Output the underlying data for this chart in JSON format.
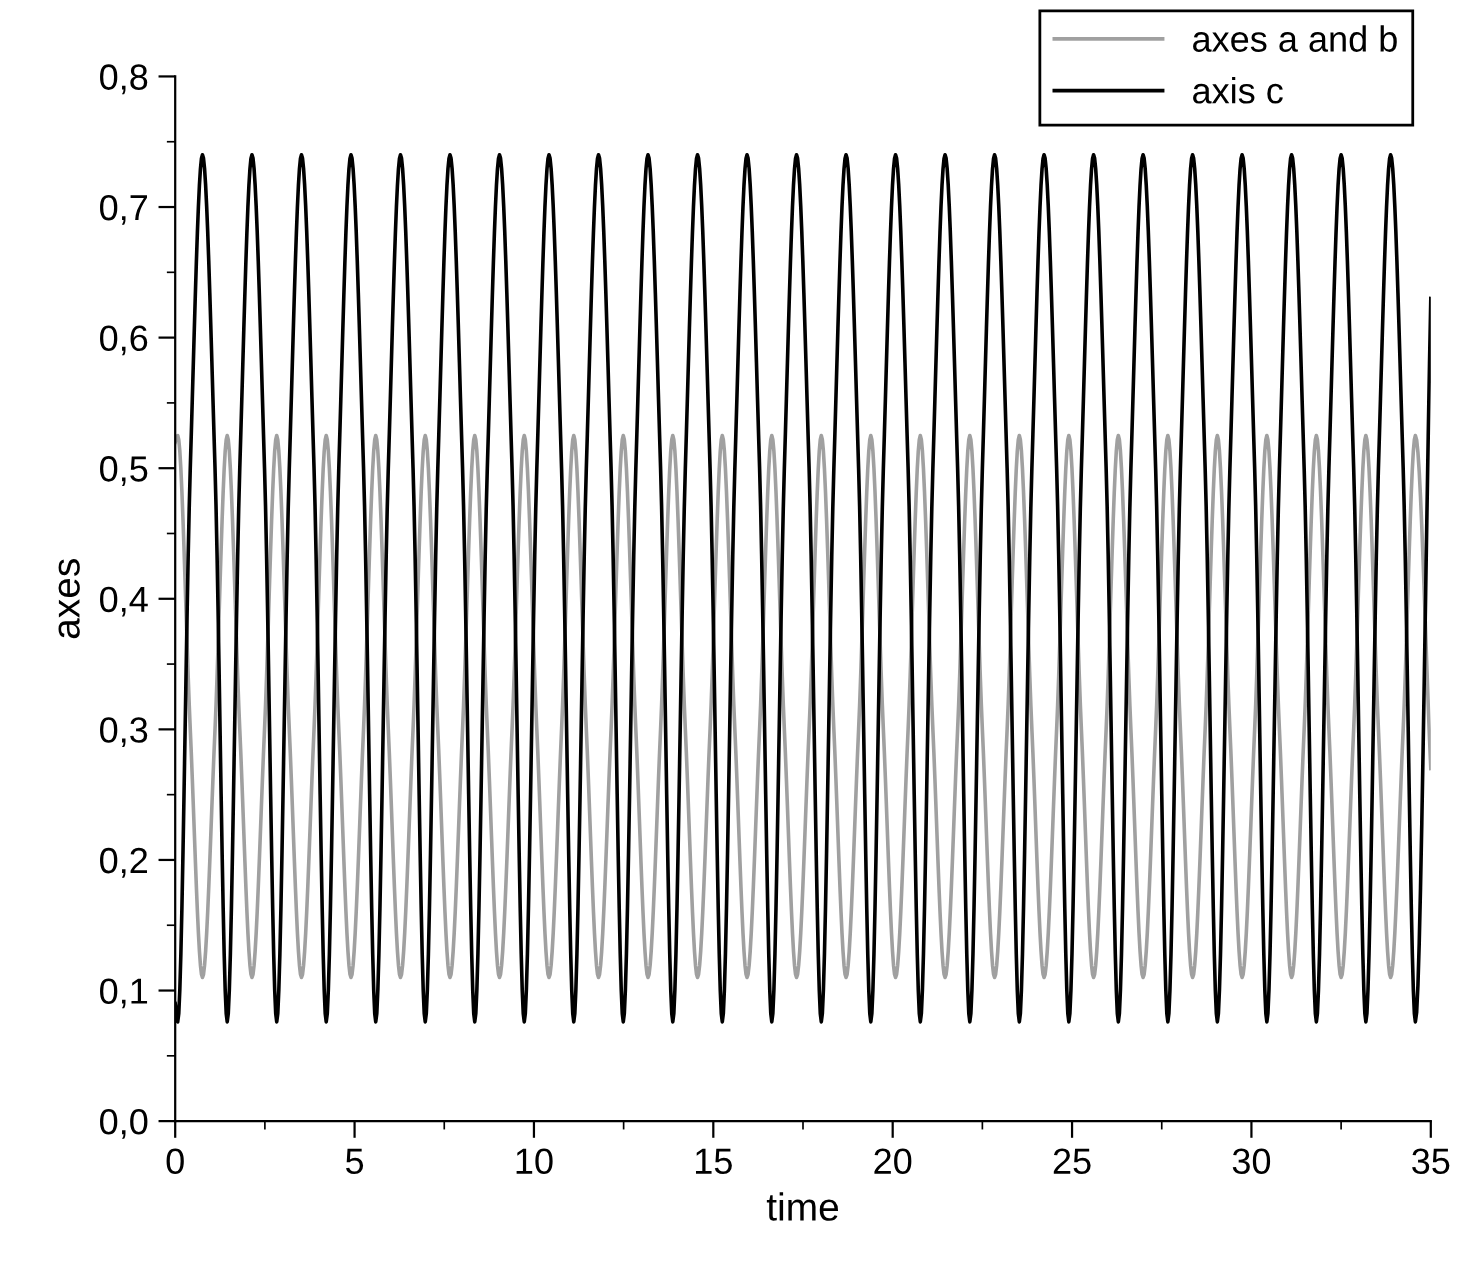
{
  "chart_data": {
    "type": "line",
    "xlabel": "time",
    "ylabel": "axes",
    "x": [
      0,
      0.07,
      0.42,
      0.76,
      1.11,
      1.45,
      1.8,
      2.14,
      2.49,
      2.83,
      3.18,
      3.52,
      3.87,
      4.21,
      4.56,
      4.9,
      5.25,
      5.59,
      5.94,
      6.28,
      6.63,
      6.97,
      7.32,
      7.66,
      8.01,
      8.35,
      8.7,
      9.04,
      9.39,
      9.73,
      10.08,
      10.42,
      10.77,
      11.11,
      11.46,
      11.8,
      12.15,
      12.49,
      12.84,
      13.18,
      13.53,
      13.87,
      14.22,
      14.56,
      14.91,
      15.25,
      15.6,
      15.94,
      16.29,
      16.63,
      16.98,
      17.32,
      17.67,
      18.01,
      18.36,
      18.7,
      19.05,
      19.39,
      19.74,
      20.08,
      20.43,
      20.77,
      21.12,
      21.46,
      21.81,
      22.15,
      22.5,
      22.84,
      23.19,
      23.53,
      23.88,
      24.22,
      24.57,
      24.91,
      25.26,
      25.6,
      25.95,
      26.29,
      26.64,
      26.98,
      27.33,
      27.67,
      28.02,
      28.36,
      28.71,
      29.05,
      29.4,
      29.74,
      30.09,
      30.43,
      30.78,
      31.12,
      31.47,
      31.81,
      32.16,
      32.5,
      32.85,
      33.19,
      33.54,
      33.88,
      34.23,
      34.57,
      35
    ],
    "series": [
      {
        "name": "axes a and b",
        "color": "#a0a0a0",
        "values": [
          0.52,
          0.525,
          0.3,
          0.11,
          0.3,
          0.525,
          0.3,
          0.11,
          0.3,
          0.525,
          0.3,
          0.11,
          0.3,
          0.525,
          0.3,
          0.11,
          0.3,
          0.525,
          0.3,
          0.11,
          0.3,
          0.525,
          0.3,
          0.11,
          0.3,
          0.525,
          0.3,
          0.11,
          0.3,
          0.525,
          0.3,
          0.11,
          0.3,
          0.525,
          0.3,
          0.11,
          0.3,
          0.525,
          0.3,
          0.11,
          0.3,
          0.525,
          0.3,
          0.11,
          0.3,
          0.525,
          0.3,
          0.11,
          0.3,
          0.525,
          0.3,
          0.11,
          0.3,
          0.525,
          0.3,
          0.11,
          0.3,
          0.525,
          0.3,
          0.11,
          0.3,
          0.525,
          0.3,
          0.11,
          0.3,
          0.525,
          0.3,
          0.11,
          0.3,
          0.525,
          0.3,
          0.11,
          0.3,
          0.525,
          0.3,
          0.11,
          0.3,
          0.525,
          0.3,
          0.11,
          0.3,
          0.525,
          0.3,
          0.11,
          0.3,
          0.525,
          0.3,
          0.11,
          0.3,
          0.525,
          0.3,
          0.11,
          0.3,
          0.525,
          0.3,
          0.11,
          0.3,
          0.525,
          0.3,
          0.11,
          0.3,
          0.525,
          0.27
        ]
      },
      {
        "name": "axis c",
        "color": "#000000",
        "values": [
          0.09,
          0.076,
          0.5,
          0.74,
          0.5,
          0.076,
          0.5,
          0.74,
          0.5,
          0.076,
          0.5,
          0.74,
          0.5,
          0.076,
          0.5,
          0.74,
          0.5,
          0.076,
          0.5,
          0.74,
          0.5,
          0.076,
          0.5,
          0.74,
          0.5,
          0.076,
          0.5,
          0.74,
          0.5,
          0.076,
          0.5,
          0.74,
          0.5,
          0.076,
          0.5,
          0.74,
          0.5,
          0.076,
          0.5,
          0.74,
          0.5,
          0.076,
          0.5,
          0.74,
          0.5,
          0.076,
          0.5,
          0.74,
          0.5,
          0.076,
          0.5,
          0.74,
          0.5,
          0.076,
          0.5,
          0.74,
          0.5,
          0.076,
          0.5,
          0.74,
          0.5,
          0.076,
          0.5,
          0.74,
          0.5,
          0.076,
          0.5,
          0.74,
          0.5,
          0.076,
          0.5,
          0.74,
          0.5,
          0.076,
          0.5,
          0.74,
          0.5,
          0.076,
          0.5,
          0.74,
          0.5,
          0.076,
          0.5,
          0.74,
          0.5,
          0.076,
          0.5,
          0.74,
          0.5,
          0.076,
          0.5,
          0.74,
          0.5,
          0.076,
          0.5,
          0.74,
          0.5,
          0.076,
          0.5,
          0.74,
          0.5,
          0.076,
          0.63
        ]
      }
    ],
    "xlim": [
      0,
      35
    ],
    "xticks": [
      0,
      5,
      10,
      15,
      20,
      25,
      30,
      35
    ],
    "ylim": [
      0,
      0.8
    ],
    "yticks": [
      {
        "value": 0,
        "label": "0,0"
      },
      {
        "value": 0.1,
        "label": "0,1"
      },
      {
        "value": 0.2,
        "label": "0,2"
      },
      {
        "value": 0.3,
        "label": "0,3"
      },
      {
        "value": 0.4,
        "label": "0,4"
      },
      {
        "value": 0.5,
        "label": "0,5"
      },
      {
        "value": 0.6,
        "label": "0,6"
      },
      {
        "value": 0.7,
        "label": "0,7"
      },
      {
        "value": 0.8,
        "label": "0,8"
      }
    ],
    "grid": false,
    "legend": "top right",
    "marker": "none",
    "line_style": "solid"
  }
}
